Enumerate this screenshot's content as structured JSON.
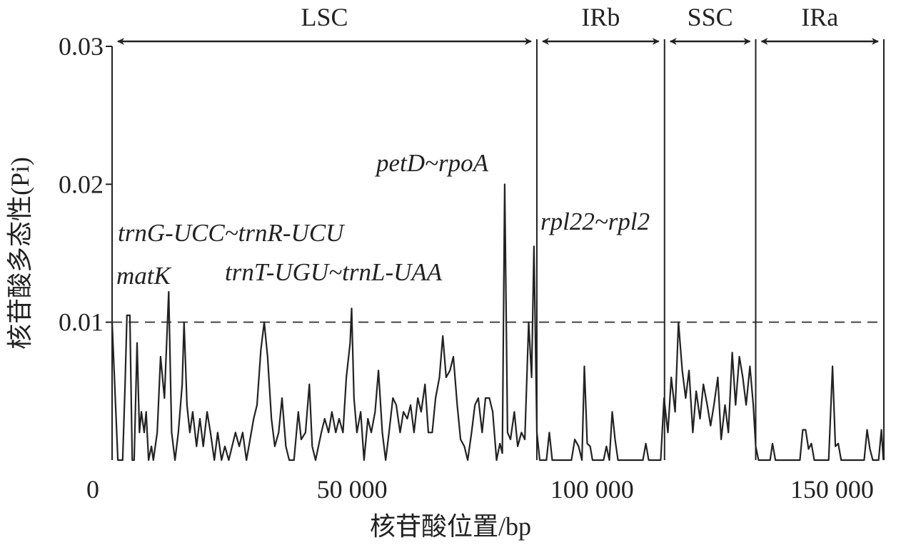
{
  "chart_data": {
    "type": "line",
    "xlabel": "核苷酸位置/bp",
    "ylabel": "核苷酸多态性(Pi)",
    "color": "#222222",
    "xlim": [
      0,
      160800
    ],
    "ylim": [
      0,
      0.03
    ],
    "xticks": [
      0,
      {
        "value": 50000,
        "label": "50 000"
      },
      {
        "value": 100000,
        "label": "100 000"
      },
      {
        "value": 150000,
        "label": "150 000"
      }
    ],
    "yticks": [
      0.01,
      0.02,
      0.03
    ],
    "threshold": 0.01,
    "regions": [
      {
        "label": "LSC",
        "start": 0,
        "end": 88500
      },
      {
        "label": "IRb",
        "start": 88500,
        "end": 115100
      },
      {
        "label": "SSC",
        "start": 115100,
        "end": 134100
      },
      {
        "label": "IRa",
        "start": 134100,
        "end": 160800
      }
    ],
    "annotations": [
      "petD~rpoA",
      "trnG-UCC~trnR-UCU",
      "rpl22~rpl2",
      "matK",
      "trnT-UGU~trnL-UAA"
    ],
    "x": [
      0,
      1200,
      2200,
      2700,
      3100,
      3700,
      4200,
      4600,
      5200,
      5700,
      6100,
      6700,
      7100,
      7600,
      8200,
      8600,
      9400,
      10100,
      10900,
      11800,
      12400,
      13100,
      13800,
      14600,
      15000,
      15600,
      16200,
      16800,
      17600,
      18300,
      19000,
      19800,
      20500,
      21300,
      22000,
      22800,
      23500,
      24300,
      25700,
      26500,
      27200,
      28000,
      29500,
      30200,
      31000,
      31700,
      32400,
      33200,
      33900,
      34700,
      35400,
      36200,
      36900,
      37900,
      38800,
      39400,
      40300,
      41100,
      41700,
      42400,
      43600,
      44300,
      45100,
      45800,
      46600,
      47300,
      48100,
      48800,
      49600,
      49900,
      50400,
      51000,
      51800,
      52500,
      53300,
      54000,
      54800,
      55500,
      56300,
      57000,
      57700,
      58500,
      59200,
      60000,
      60700,
      61500,
      62200,
      62900,
      63700,
      64400,
      65200,
      65900,
      66700,
      67400,
      68200,
      68900,
      69600,
      70400,
      71100,
      71900,
      72600,
      73400,
      74100,
      74900,
      75600,
      76300,
      77100,
      77800,
      78600,
      79300,
      80100,
      80800,
      81300,
      81800,
      82400,
      83000,
      83800,
      84500,
      85300,
      86000,
      86800,
      87400,
      87900,
      88500,
      89100,
      90500,
      91100,
      91700,
      95700,
      96400,
      97200,
      97900,
      98400,
      99000,
      99600,
      100100,
      102400,
      103000,
      103600,
      104200,
      104800,
      105400,
      110600,
      111200,
      111800,
      114300,
      115000,
      115800,
      116500,
      117300,
      118000,
      118800,
      119500,
      120200,
      121000,
      121700,
      122500,
      123200,
      124000,
      124700,
      125400,
      126200,
      126900,
      127700,
      128400,
      129200,
      129900,
      130700,
      131400,
      132100,
      132900,
      133600,
      134100,
      134700,
      137100,
      137600,
      138200,
      143300,
      143900,
      144500,
      145100,
      145700,
      146300,
      149300,
      150100,
      150700,
      151300,
      151900,
      156700,
      157300,
      157900,
      158500,
      159700,
      160300,
      160700
    ],
    "values": [
      0.01,
      0,
      0,
      0.0055,
      0.0105,
      0.0105,
      0,
      0,
      0.0085,
      0.002,
      0.0035,
      0.002,
      0.0035,
      0,
      0.001,
      0,
      0.002,
      0.0075,
      0.0045,
      0.0122,
      0.002,
      0,
      0.002,
      0.0055,
      0.01,
      0.004,
      0.002,
      0.0035,
      0.001,
      0.003,
      0.001,
      0.0035,
      0.002,
      0,
      0.002,
      0,
      0.001,
      0,
      0.002,
      0.001,
      0.002,
      0,
      0.003,
      0.004,
      0.008,
      0.01,
      0.0075,
      0.003,
      0.001,
      0.002,
      0.0045,
      0.001,
      0,
      0,
      0.0035,
      0.0015,
      0.002,
      0.0055,
      0.001,
      0,
      0.002,
      0.003,
      0.002,
      0.0035,
      0.002,
      0.003,
      0.002,
      0.006,
      0.0085,
      0.011,
      0.0045,
      0.002,
      0.0035,
      0,
      0.003,
      0.002,
      0.0035,
      0.0065,
      0.002,
      0,
      0.002,
      0.0045,
      0.004,
      0.002,
      0.0035,
      0.003,
      0.004,
      0.002,
      0.0045,
      0.0035,
      0.0055,
      0.002,
      0.002,
      0.0045,
      0.006,
      0.009,
      0.006,
      0.0065,
      0.0075,
      0.004,
      0.0015,
      0.001,
      0,
      0.002,
      0.004,
      0.0045,
      0.002,
      0.0045,
      0.0045,
      0.0035,
      0,
      0.0012,
      0.0005,
      0.02,
      0.002,
      0.0015,
      0.0035,
      0.001,
      0.002,
      0.0015,
      0.01,
      0.006,
      0.0155,
      0.002,
      0,
      0,
      0.002,
      0,
      0,
      0.0015,
      0.001,
      0,
      0.0068,
      0.0012,
      0.001,
      0,
      0,
      0.001,
      0,
      0.0035,
      0.0015,
      0,
      0,
      0.0012,
      0,
      0,
      0.0045,
      0.002,
      0.006,
      0.0035,
      0.01,
      0.0065,
      0.0045,
      0.0065,
      0.002,
      0.005,
      0.003,
      0.0055,
      0.004,
      0.0025,
      0.004,
      0.006,
      0.0015,
      0.004,
      0.002,
      0.0078,
      0.004,
      0.0075,
      0.006,
      0.004,
      0.0068,
      0.004,
      0.001,
      0,
      0,
      0.0012,
      0,
      0,
      0.0022,
      0.0022,
      0.0008,
      0.0012,
      0,
      0,
      0.0068,
      0.001,
      0.0012,
      0,
      0,
      0.0022,
      0.0008,
      0,
      0,
      0.0022,
      0
    ]
  }
}
